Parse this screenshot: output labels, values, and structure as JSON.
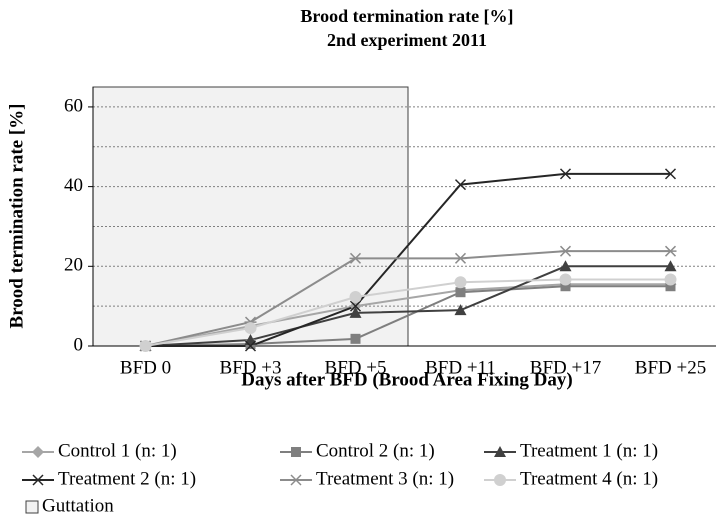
{
  "chart_data": {
    "type": "line",
    "title": "Brood termination rate [%]",
    "subtitle": "2nd experiment 2011",
    "x_label": "Days after BFD (Brood Area Fixing Day)",
    "y_label": "Brood termination rate [%]",
    "categories": [
      "BFD 0",
      "BFD +3",
      "BFD +5",
      "BFD +11",
      "BFD +17",
      "BFD +25"
    ],
    "ylim": [
      0,
      65
    ],
    "yticks": [
      0,
      20,
      40,
      60
    ],
    "grid_lines": [
      10,
      20,
      30,
      40,
      50,
      60
    ],
    "shaded_region": {
      "name": "Guttation",
      "color": "#f2f2f2",
      "from_category": 0,
      "to_category": 2
    },
    "series": [
      {
        "name": "Control 1 (n: 1)",
        "color": "#a6a6a6",
        "marker": "diamond",
        "values": [
          0,
          5,
          10,
          14,
          15.5,
          15.5
        ]
      },
      {
        "name": "Control 2 (n: 1)",
        "color": "#7f7f7f",
        "marker": "square",
        "values": [
          0,
          0.5,
          1.8,
          13.5,
          15,
          15
        ]
      },
      {
        "name": "Treatment 1 (n: 1)",
        "color": "#404040",
        "marker": "triangle",
        "values": [
          0,
          1.5,
          8.3,
          9,
          20,
          20
        ]
      },
      {
        "name": "Treatment 2 (n: 1)",
        "color": "#262626",
        "marker": "x",
        "values": [
          0,
          0,
          10,
          40.5,
          43.2,
          43.2
        ]
      },
      {
        "name": "Treatment 3 (n: 1)",
        "color": "#8c8c8c",
        "marker": "star",
        "values": [
          0,
          6,
          22,
          22,
          23.8,
          23.8
        ]
      },
      {
        "name": "Treatment 4 (n: 1)",
        "color": "#d0d0d0",
        "marker": "circle",
        "values": [
          0,
          4.5,
          12.3,
          16,
          16.7,
          16.7
        ]
      }
    ]
  }
}
